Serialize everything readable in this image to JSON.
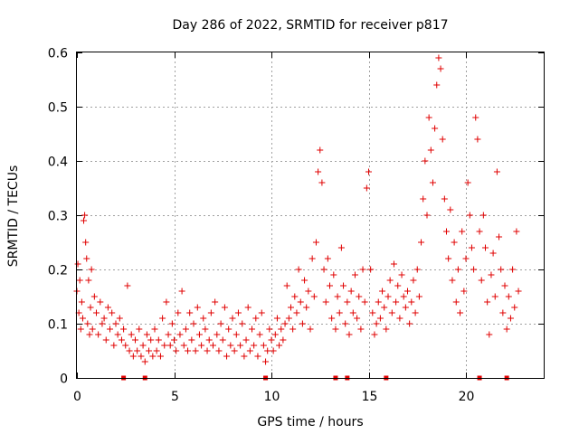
{
  "chart_data": {
    "type": "scatter",
    "title": "Day 286 of 2022, SRMTID for receiver p817",
    "xlabel": "GPS time / hours",
    "ylabel": "SRMTID / TECUs",
    "xlim": [
      0,
      24
    ],
    "ylim": [
      0,
      0.6
    ],
    "xticks": [
      0,
      5,
      10,
      15,
      20
    ],
    "xtick_labels": [
      "0",
      "5",
      "10",
      "15",
      "20"
    ],
    "yticks": [
      0,
      0.1,
      0.2,
      0.3,
      0.4,
      0.5,
      0.6
    ],
    "ytick_labels": [
      "0",
      "0.1",
      "0.2",
      "0.3",
      "0.4",
      "0.5",
      "0.6"
    ],
    "grid": true,
    "marker": "+",
    "color": "#e00000",
    "baseline_markers_x": [
      2.4,
      3.5,
      9.7,
      13.3,
      13.9,
      15.9,
      20.7,
      22.1
    ],
    "series": [
      {
        "name": "SRMTID",
        "x": [
          0.0,
          0.05,
          0.1,
          0.15,
          0.2,
          0.25,
          0.3,
          0.35,
          0.4,
          0.45,
          0.5,
          0.55,
          0.6,
          0.65,
          0.7,
          0.75,
          0.8,
          0.9,
          1.0,
          1.1,
          1.2,
          1.3,
          1.4,
          1.5,
          1.6,
          1.7,
          1.8,
          1.9,
          2.0,
          2.1,
          2.2,
          2.3,
          2.4,
          2.5,
          2.6,
          2.7,
          2.8,
          2.9,
          3.0,
          3.1,
          3.2,
          3.3,
          3.4,
          3.5,
          3.6,
          3.7,
          3.8,
          3.9,
          4.0,
          4.1,
          4.2,
          4.3,
          4.4,
          4.5,
          4.6,
          4.7,
          4.8,
          4.9,
          5.0,
          5.1,
          5.2,
          5.3,
          5.4,
          5.5,
          5.6,
          5.7,
          5.8,
          5.9,
          6.0,
          6.1,
          6.2,
          6.3,
          6.4,
          6.5,
          6.6,
          6.7,
          6.8,
          6.9,
          7.0,
          7.1,
          7.2,
          7.3,
          7.4,
          7.5,
          7.6,
          7.7,
          7.8,
          7.9,
          8.0,
          8.1,
          8.2,
          8.3,
          8.4,
          8.5,
          8.6,
          8.7,
          8.8,
          8.9,
          9.0,
          9.1,
          9.2,
          9.3,
          9.4,
          9.5,
          9.6,
          9.7,
          9.8,
          9.9,
          10.0,
          10.1,
          10.2,
          10.3,
          10.4,
          10.5,
          10.6,
          10.7,
          10.8,
          10.9,
          11.0,
          11.1,
          11.2,
          11.3,
          11.4,
          11.5,
          11.6,
          11.7,
          11.8,
          11.9,
          12.0,
          12.1,
          12.2,
          12.3,
          12.4,
          12.5,
          12.6,
          12.7,
          12.8,
          12.9,
          13.0,
          13.1,
          13.2,
          13.3,
          13.4,
          13.5,
          13.6,
          13.7,
          13.8,
          13.9,
          14.0,
          14.1,
          14.2,
          14.3,
          14.4,
          14.5,
          14.6,
          14.7,
          14.8,
          14.9,
          15.0,
          15.1,
          15.2,
          15.3,
          15.4,
          15.5,
          15.6,
          15.7,
          15.8,
          15.9,
          16.0,
          16.1,
          16.2,
          16.3,
          16.4,
          16.5,
          16.6,
          16.7,
          16.8,
          16.9,
          17.0,
          17.1,
          17.2,
          17.3,
          17.4,
          17.5,
          17.6,
          17.7,
          17.8,
          17.9,
          18.0,
          18.1,
          18.2,
          18.3,
          18.4,
          18.5,
          18.6,
          18.7,
          18.8,
          18.9,
          19.0,
          19.1,
          19.2,
          19.3,
          19.4,
          19.5,
          19.6,
          19.7,
          19.8,
          19.9,
          20.0,
          20.1,
          20.2,
          20.3,
          20.4,
          20.5,
          20.6,
          20.7,
          20.8,
          20.9,
          21.0,
          21.1,
          21.2,
          21.3,
          21.4,
          21.5,
          21.6,
          21.7,
          21.8,
          21.9,
          22.0,
          22.1,
          22.2,
          22.3,
          22.4,
          22.5,
          22.6,
          22.7
        ],
        "y": [
          0.16,
          0.21,
          0.12,
          0.18,
          0.09,
          0.14,
          0.11,
          0.29,
          0.3,
          0.25,
          0.22,
          0.1,
          0.18,
          0.08,
          0.13,
          0.2,
          0.09,
          0.15,
          0.12,
          0.08,
          0.14,
          0.1,
          0.11,
          0.07,
          0.13,
          0.09,
          0.12,
          0.06,
          0.1,
          0.08,
          0.11,
          0.07,
          0.09,
          0.06,
          0.17,
          0.05,
          0.08,
          0.04,
          0.07,
          0.05,
          0.09,
          0.04,
          0.06,
          0.03,
          0.08,
          0.05,
          0.07,
          0.04,
          0.09,
          0.05,
          0.07,
          0.04,
          0.11,
          0.06,
          0.14,
          0.08,
          0.06,
          0.1,
          0.07,
          0.05,
          0.12,
          0.08,
          0.16,
          0.06,
          0.09,
          0.05,
          0.12,
          0.07,
          0.1,
          0.05,
          0.13,
          0.08,
          0.06,
          0.11,
          0.09,
          0.05,
          0.07,
          0.12,
          0.06,
          0.14,
          0.08,
          0.05,
          0.1,
          0.07,
          0.13,
          0.04,
          0.09,
          0.06,
          0.11,
          0.05,
          0.08,
          0.12,
          0.06,
          0.1,
          0.04,
          0.07,
          0.13,
          0.05,
          0.09,
          0.06,
          0.11,
          0.04,
          0.08,
          0.12,
          0.06,
          0.03,
          0.05,
          0.09,
          0.07,
          0.05,
          0.08,
          0.11,
          0.06,
          0.09,
          0.07,
          0.1,
          0.17,
          0.11,
          0.13,
          0.09,
          0.15,
          0.12,
          0.2,
          0.14,
          0.1,
          0.18,
          0.13,
          0.16,
          0.09,
          0.22,
          0.15,
          0.25,
          0.38,
          0.42,
          0.36,
          0.2,
          0.14,
          0.22,
          0.17,
          0.11,
          0.19,
          0.09,
          0.15,
          0.12,
          0.24,
          0.17,
          0.1,
          0.14,
          0.08,
          0.16,
          0.12,
          0.19,
          0.11,
          0.15,
          0.09,
          0.2,
          0.14,
          0.35,
          0.38,
          0.2,
          0.12,
          0.08,
          0.1,
          0.14,
          0.11,
          0.16,
          0.13,
          0.09,
          0.15,
          0.18,
          0.12,
          0.21,
          0.14,
          0.17,
          0.11,
          0.19,
          0.15,
          0.13,
          0.16,
          0.1,
          0.14,
          0.18,
          0.12,
          0.2,
          0.15,
          0.25,
          0.33,
          0.4,
          0.3,
          0.48,
          0.42,
          0.36,
          0.46,
          0.54,
          0.59,
          0.57,
          0.44,
          0.33,
          0.27,
          0.22,
          0.31,
          0.18,
          0.25,
          0.14,
          0.2,
          0.12,
          0.27,
          0.16,
          0.22,
          0.36,
          0.3,
          0.24,
          0.2,
          0.48,
          0.44,
          0.27,
          0.18,
          0.3,
          0.24,
          0.14,
          0.08,
          0.19,
          0.23,
          0.15,
          0.38,
          0.26,
          0.2,
          0.12,
          0.17,
          0.09,
          0.15,
          0.11,
          0.2,
          0.13,
          0.27,
          0.16
        ]
      }
    ]
  }
}
